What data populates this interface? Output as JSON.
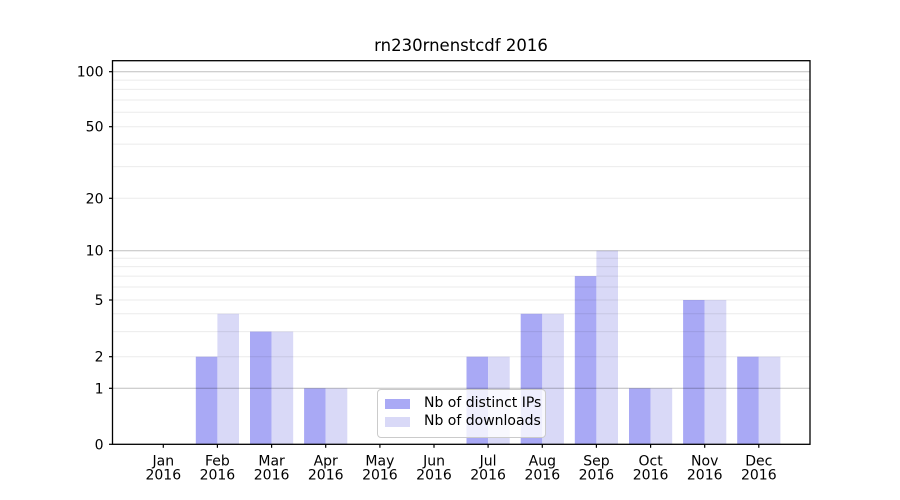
{
  "chart_data": {
    "type": "bar",
    "title": "rn230rnenstcdf 2016",
    "categories": [
      "Jan",
      "Feb",
      "Mar",
      "Apr",
      "May",
      "Jun",
      "Jul",
      "Aug",
      "Sep",
      "Oct",
      "Nov",
      "Dec"
    ],
    "tick_year": "2016",
    "series": [
      {
        "name": "Nb of distinct IPs",
        "color": "#a9a9f5",
        "values": [
          0,
          2,
          3,
          1,
          0,
          0,
          2,
          4,
          7,
          1,
          5,
          2
        ]
      },
      {
        "name": "Nb of downloads",
        "color": "#d9d9f7",
        "values": [
          0,
          4,
          3,
          1,
          0,
          0,
          2,
          4,
          10,
          1,
          5,
          2
        ]
      }
    ],
    "y_axis": {
      "scale": "symlog",
      "ticks": [
        0,
        1,
        2,
        5,
        10,
        20,
        50,
        100
      ],
      "ylim": [
        0,
        115
      ],
      "gridlines_faint": [
        2,
        3,
        4,
        5,
        6,
        7,
        8,
        9,
        20,
        30,
        40,
        50,
        60,
        70,
        80,
        90
      ],
      "gridlines_dark": [
        1,
        10,
        100
      ]
    },
    "legend_position": "lower-center",
    "grid": "on",
    "colors": {
      "bar_distinct_ips": "#a9a9f5",
      "bar_downloads": "#d9d9f7",
      "grid_dark": "#c3c3c3",
      "grid_faint": "#ebebeb",
      "axis": "#000000",
      "background": "#ffffff"
    }
  }
}
